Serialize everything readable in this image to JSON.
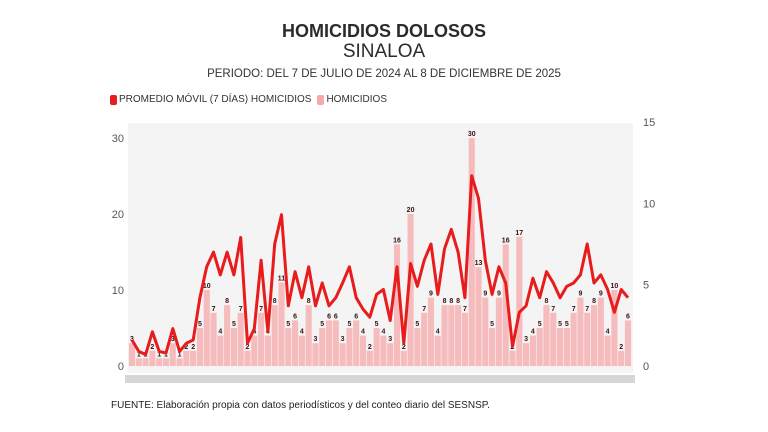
{
  "title": "HOMICIDIOS DOLOSOS",
  "subtitle": "SINALOA",
  "period": "PERIODO: DEL 7 DE JULIO DE 2024 AL 8 DE DICIEMBRE DE 2025",
  "footer": "FUENTE: Elaboración propia con datos periodísticos y del conteo diario del SESNSP.",
  "chart_data": {
    "type": "bar+line",
    "title": "HOMICIDIOS DOLOSOS",
    "subtitle": "SINALOA",
    "x_range": [
      "2024-07-07",
      "2025-12-08"
    ],
    "legend": {
      "placement": "top-left",
      "entries": [
        "PROMEDIO MÓVIL (7 DÍAS) HOMICIDIOS",
        "HOMICIDIOS"
      ]
    },
    "colors": {
      "moving_average": "#e81c1c",
      "homicidios": "#f7a8aa",
      "plot_background": "#f4f4f4"
    },
    "grid": false,
    "y_left": {
      "range": [
        0,
        30
      ],
      "ticks": [
        "0",
        "10",
        "20",
        "30"
      ],
      "series": "HOMICIDIOS"
    },
    "y_right": {
      "range": [
        0,
        15
      ],
      "ticks": [
        "0",
        "5",
        "10",
        "15"
      ],
      "series": "PROMEDIO MÓVIL (7 DÍAS) HOMICIDIOS"
    },
    "series": [
      {
        "name": "HOMICIDIOS",
        "axis": "left",
        "type": "bar",
        "values": [
          3,
          1,
          1,
          2,
          1,
          1,
          3,
          1,
          2,
          2,
          5,
          10,
          7,
          4,
          8,
          5,
          7,
          2,
          4,
          7,
          4,
          8,
          11,
          5,
          6,
          4,
          8,
          3,
          5,
          6,
          6,
          3,
          5,
          6,
          4,
          2,
          5,
          4,
          3,
          16,
          2,
          20,
          5,
          7,
          9,
          4,
          8,
          8,
          8,
          7,
          30,
          13,
          9,
          5,
          9,
          16,
          2,
          17,
          3,
          4,
          5,
          8,
          7,
          5,
          5,
          7,
          9,
          7,
          8,
          9,
          4,
          10,
          2,
          6
        ]
      },
      {
        "name": "PROMEDIO MÓVIL (7 DÍAS) HOMICIDIOS",
        "axis": "right",
        "type": "line",
        "values": [
          1.6,
          0.9,
          0.7,
          2.1,
          0.9,
          0.8,
          2.3,
          0.9,
          1.4,
          1.6,
          4.2,
          6.1,
          7.0,
          5.6,
          7.0,
          5.6,
          7.9,
          1.4,
          2.3,
          6.5,
          2.1,
          7.5,
          9.3,
          3.7,
          5.8,
          4.2,
          6.1,
          3.7,
          5.1,
          3.7,
          4.2,
          5.1,
          6.1,
          4.2,
          3.5,
          3.0,
          4.4,
          4.7,
          2.8,
          6.1,
          1.4,
          6.3,
          4.9,
          6.5,
          7.5,
          4.4,
          7.2,
          8.4,
          7.0,
          4.2,
          11.7,
          10.3,
          6.5,
          4.4,
          6.1,
          5.1,
          1.2,
          3.3,
          3.7,
          5.4,
          4.2,
          5.8,
          5.1,
          4.2,
          4.9,
          5.1,
          5.6,
          7.5,
          5.1,
          5.6,
          4.7,
          3.3,
          4.7,
          4.2
        ]
      }
    ]
  }
}
